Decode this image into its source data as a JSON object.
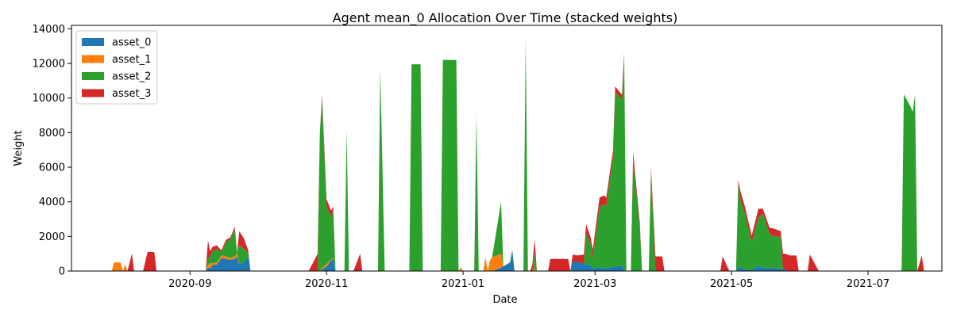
{
  "chart_data": {
    "type": "area",
    "stacked": true,
    "title": "Agent mean_0 Allocation Over Time (stacked weights)",
    "xlabel": "Date",
    "ylabel": "Weight",
    "xlim": [
      "2020-07-10",
      "2021-08-03"
    ],
    "ylim": [
      0,
      14200
    ],
    "x_ticks": [
      "2020-09-01",
      "2020-11-01",
      "2021-01-01",
      "2021-03-01",
      "2021-05-01",
      "2021-07-01"
    ],
    "x_tick_labels": [
      "2020-09",
      "2020-11",
      "2021-01",
      "2021-03",
      "2021-05",
      "2021-07"
    ],
    "y_ticks": [
      0,
      2000,
      4000,
      6000,
      8000,
      10000,
      12000,
      14000
    ],
    "y_tick_labels": [
      "0",
      "2000",
      "4000",
      "6000",
      "8000",
      "10000",
      "12000",
      "14000"
    ],
    "legend_position": "top-left",
    "grid": false,
    "series": [
      {
        "name": "asset_0",
        "color": "#1f77b4",
        "points": [
          [
            "2020-09-08",
            0
          ],
          [
            "2020-09-09",
            200
          ],
          [
            "2020-09-10",
            150
          ],
          [
            "2020-09-11",
            350
          ],
          [
            "2020-09-13",
            380
          ],
          [
            "2020-09-15",
            750
          ],
          [
            "2020-09-17",
            700
          ],
          [
            "2020-09-19",
            650
          ],
          [
            "2020-09-21",
            700
          ],
          [
            "2020-09-22",
            850
          ],
          [
            "2020-09-23",
            400
          ],
          [
            "2020-09-25",
            500
          ],
          [
            "2020-09-27",
            850
          ],
          [
            "2020-09-28",
            0
          ],
          [
            "2020-10-29",
            0
          ],
          [
            "2020-10-30",
            100
          ],
          [
            "2020-11-01",
            250
          ],
          [
            "2020-11-03",
            600
          ],
          [
            "2020-11-04",
            700
          ],
          [
            "2020-11-05",
            0
          ],
          [
            "2021-01-14",
            0
          ],
          [
            "2021-01-18",
            200
          ],
          [
            "2021-01-22",
            500
          ],
          [
            "2021-01-23",
            1200
          ],
          [
            "2021-01-24",
            0
          ],
          [
            "2021-02-18",
            0
          ],
          [
            "2021-02-19",
            550
          ],
          [
            "2021-02-21",
            550
          ],
          [
            "2021-02-24",
            400
          ],
          [
            "2021-02-25",
            400
          ],
          [
            "2021-02-27",
            350
          ],
          [
            "2021-02-28",
            150
          ],
          [
            "2021-03-03",
            200
          ],
          [
            "2021-03-06",
            150
          ],
          [
            "2021-03-09",
            250
          ],
          [
            "2021-03-13",
            300
          ],
          [
            "2021-03-14",
            0
          ],
          [
            "2021-05-03",
            0
          ],
          [
            "2021-05-04",
            250
          ],
          [
            "2021-05-05",
            200
          ],
          [
            "2021-05-07",
            100
          ],
          [
            "2021-05-10",
            50
          ],
          [
            "2021-05-13",
            300
          ],
          [
            "2021-05-15",
            200
          ],
          [
            "2021-05-18",
            150
          ],
          [
            "2021-05-20",
            200
          ],
          [
            "2021-05-23",
            100
          ],
          [
            "2021-05-25",
            100
          ],
          [
            "2021-05-27",
            0
          ]
        ]
      },
      {
        "name": "asset_1",
        "color": "#ff7f0e",
        "points": [
          [
            "2020-07-28",
            0
          ],
          [
            "2020-07-29",
            500
          ],
          [
            "2020-08-01",
            500
          ],
          [
            "2020-08-02",
            0
          ],
          [
            "2020-08-03",
            400
          ],
          [
            "2020-08-04",
            0
          ],
          [
            "2020-09-08",
            0
          ],
          [
            "2020-09-09",
            150
          ],
          [
            "2020-09-10",
            300
          ],
          [
            "2020-09-11",
            100
          ],
          [
            "2020-09-13",
            100
          ],
          [
            "2020-09-15",
            150
          ],
          [
            "2020-09-17",
            150
          ],
          [
            "2020-09-19",
            100
          ],
          [
            "2020-09-21",
            150
          ],
          [
            "2020-09-22",
            200
          ],
          [
            "2020-09-23",
            0
          ],
          [
            "2020-09-28",
            0
          ],
          [
            "2020-10-29",
            0
          ],
          [
            "2020-10-30",
            100
          ],
          [
            "2020-11-01",
            150
          ],
          [
            "2020-11-03",
            50
          ],
          [
            "2020-11-04",
            50
          ],
          [
            "2020-11-05",
            0
          ],
          [
            "2020-12-30",
            0
          ],
          [
            "2020-12-31",
            200
          ],
          [
            "2021-01-01",
            0
          ],
          [
            "2021-01-10",
            0
          ],
          [
            "2021-01-11",
            800
          ],
          [
            "2021-01-12",
            0
          ],
          [
            "2021-01-13",
            600
          ],
          [
            "2021-01-14",
            800
          ],
          [
            "2021-01-18",
            800
          ],
          [
            "2021-01-19",
            0
          ],
          [
            "2021-02-01",
            0
          ],
          [
            "2021-02-02",
            150
          ],
          [
            "2021-02-03",
            0
          ]
        ]
      },
      {
        "name": "asset_2",
        "color": "#2ca02c",
        "points": [
          [
            "2020-09-08",
            0
          ],
          [
            "2020-09-09",
            400
          ],
          [
            "2020-09-10",
            400
          ],
          [
            "2020-09-11",
            700
          ],
          [
            "2020-09-13",
            800
          ],
          [
            "2020-09-15",
            200
          ],
          [
            "2020-09-17",
            800
          ],
          [
            "2020-09-19",
            1100
          ],
          [
            "2020-09-21",
            1550
          ],
          [
            "2020-09-22",
            0
          ],
          [
            "2020-09-23",
            1100
          ],
          [
            "2020-09-25",
            800
          ],
          [
            "2020-09-27",
            200
          ],
          [
            "2020-09-28",
            0
          ],
          [
            "2020-10-28",
            0
          ],
          [
            "2020-10-29",
            8000
          ],
          [
            "2020-10-30",
            9800
          ],
          [
            "2020-11-01",
            3300
          ],
          [
            "2020-11-03",
            2500
          ],
          [
            "2020-11-04",
            2800
          ],
          [
            "2020-11-05",
            0
          ],
          [
            "2020-11-09",
            0
          ],
          [
            "2020-11-10",
            8100
          ],
          [
            "2020-11-11",
            0
          ],
          [
            "2020-11-24",
            0
          ],
          [
            "2020-11-25",
            11700
          ],
          [
            "2020-11-27",
            0
          ],
          [
            "2020-12-08",
            0
          ],
          [
            "2020-12-09",
            11950
          ],
          [
            "2020-12-13",
            11950
          ],
          [
            "2020-12-14",
            0
          ],
          [
            "2020-12-22",
            0
          ],
          [
            "2020-12-23",
            12200
          ],
          [
            "2020-12-29",
            12200
          ],
          [
            "2020-12-30",
            0
          ],
          [
            "2021-01-06",
            0
          ],
          [
            "2021-01-07",
            9000
          ],
          [
            "2021-01-08",
            0
          ],
          [
            "2021-01-13",
            0
          ],
          [
            "2021-01-14",
            0
          ],
          [
            "2021-01-18",
            3000
          ],
          [
            "2021-01-19",
            0
          ],
          [
            "2021-01-28",
            0
          ],
          [
            "2021-01-29",
            13400
          ],
          [
            "2021-01-30",
            0
          ],
          [
            "2021-02-01",
            0
          ],
          [
            "2021-02-02",
            900
          ],
          [
            "2021-02-03",
            0
          ],
          [
            "2021-02-24",
            0
          ],
          [
            "2021-02-25",
            1750
          ],
          [
            "2021-02-27",
            1250
          ],
          [
            "2021-02-28",
            600
          ],
          [
            "2021-03-03",
            3500
          ],
          [
            "2021-03-05",
            3700
          ],
          [
            "2021-03-06",
            3600
          ],
          [
            "2021-03-09",
            6300
          ],
          [
            "2021-03-10",
            10100
          ],
          [
            "2021-03-13",
            9600
          ],
          [
            "2021-03-14",
            12300
          ],
          [
            "2021-03-15",
            0
          ],
          [
            "2021-03-17",
            0
          ],
          [
            "2021-03-18",
            6500
          ],
          [
            "2021-03-21",
            2500
          ],
          [
            "2021-03-22",
            0
          ],
          [
            "2021-03-25",
            0
          ],
          [
            "2021-03-26",
            5700
          ],
          [
            "2021-03-28",
            0
          ],
          [
            "2021-05-03",
            0
          ],
          [
            "2021-05-04",
            4800
          ],
          [
            "2021-05-05",
            3900
          ],
          [
            "2021-05-07",
            3200
          ],
          [
            "2021-05-10",
            1600
          ],
          [
            "2021-05-13",
            2800
          ],
          [
            "2021-05-15",
            3100
          ],
          [
            "2021-05-18",
            2000
          ],
          [
            "2021-05-20",
            1800
          ],
          [
            "2021-05-23",
            1900
          ],
          [
            "2021-05-24",
            0
          ],
          [
            "2021-07-16",
            0
          ],
          [
            "2021-07-17",
            10200
          ],
          [
            "2021-07-20",
            9500
          ],
          [
            "2021-07-21",
            9200
          ],
          [
            "2021-07-22",
            10200
          ],
          [
            "2021-07-23",
            0
          ]
        ]
      },
      {
        "name": "asset_3",
        "color": "#d62728",
        "points": [
          [
            "2020-08-04",
            0
          ],
          [
            "2020-08-06",
            1000
          ],
          [
            "2020-08-07",
            0
          ],
          [
            "2020-08-11",
            0
          ],
          [
            "2020-08-13",
            1100
          ],
          [
            "2020-08-16",
            1100
          ],
          [
            "2020-08-17",
            0
          ],
          [
            "2020-09-08",
            0
          ],
          [
            "2020-09-09",
            1000
          ],
          [
            "2020-09-10",
            300
          ],
          [
            "2020-09-11",
            250
          ],
          [
            "2020-09-13",
            200
          ],
          [
            "2020-09-15",
            100
          ],
          [
            "2020-09-17",
            150
          ],
          [
            "2020-09-19",
            100
          ],
          [
            "2020-09-21",
            150
          ],
          [
            "2020-09-22",
            0
          ],
          [
            "2020-09-23",
            800
          ],
          [
            "2020-09-25",
            600
          ],
          [
            "2020-09-27",
            150
          ],
          [
            "2020-09-28",
            0
          ],
          [
            "2020-10-24",
            0
          ],
          [
            "2020-10-28",
            1000
          ],
          [
            "2020-10-29",
            0
          ],
          [
            "2020-10-30",
            200
          ],
          [
            "2020-11-01",
            450
          ],
          [
            "2020-11-03",
            350
          ],
          [
            "2020-11-04",
            150
          ],
          [
            "2020-11-05",
            0
          ],
          [
            "2020-11-13",
            0
          ],
          [
            "2020-11-16",
            1000
          ],
          [
            "2020-11-17",
            0
          ],
          [
            "2021-01-23",
            0
          ],
          [
            "2021-01-24",
            0
          ],
          [
            "2021-01-31",
            0
          ],
          [
            "2021-02-02",
            800
          ],
          [
            "2021-02-03",
            0
          ],
          [
            "2021-02-08",
            0
          ],
          [
            "2021-02-09",
            700
          ],
          [
            "2021-02-17",
            700
          ],
          [
            "2021-02-18",
            0
          ],
          [
            "2021-02-19",
            400
          ],
          [
            "2021-02-21",
            350
          ],
          [
            "2021-02-24",
            550
          ],
          [
            "2021-02-25",
            550
          ],
          [
            "2021-02-27",
            350
          ],
          [
            "2021-02-28",
            500
          ],
          [
            "2021-03-03",
            550
          ],
          [
            "2021-03-05",
            500
          ],
          [
            "2021-03-06",
            500
          ],
          [
            "2021-03-09",
            400
          ],
          [
            "2021-03-10",
            300
          ],
          [
            "2021-03-13",
            300
          ],
          [
            "2021-03-14",
            300
          ],
          [
            "2021-03-15",
            0
          ],
          [
            "2021-03-17",
            0
          ],
          [
            "2021-03-18",
            400
          ],
          [
            "2021-03-21",
            300
          ],
          [
            "2021-03-22",
            0
          ],
          [
            "2021-03-25",
            0
          ],
          [
            "2021-03-26",
            300
          ],
          [
            "2021-03-28",
            850
          ],
          [
            "2021-03-31",
            850
          ],
          [
            "2021-04-01",
            0
          ],
          [
            "2021-04-26",
            0
          ],
          [
            "2021-04-27",
            850
          ],
          [
            "2021-04-30",
            0
          ],
          [
            "2021-05-03",
            0
          ],
          [
            "2021-05-04",
            200
          ],
          [
            "2021-05-05",
            500
          ],
          [
            "2021-05-07",
            400
          ],
          [
            "2021-05-10",
            400
          ],
          [
            "2021-05-13",
            500
          ],
          [
            "2021-05-15",
            300
          ],
          [
            "2021-05-18",
            350
          ],
          [
            "2021-05-20",
            450
          ],
          [
            "2021-05-23",
            300
          ],
          [
            "2021-05-24",
            900
          ],
          [
            "2021-05-26",
            900
          ],
          [
            "2021-05-30",
            900
          ],
          [
            "2021-05-31",
            0
          ],
          [
            "2021-06-04",
            0
          ],
          [
            "2021-06-05",
            950
          ],
          [
            "2021-06-09",
            0
          ],
          [
            "2021-07-23",
            0
          ],
          [
            "2021-07-25",
            900
          ],
          [
            "2021-07-26",
            0
          ]
        ]
      }
    ]
  }
}
